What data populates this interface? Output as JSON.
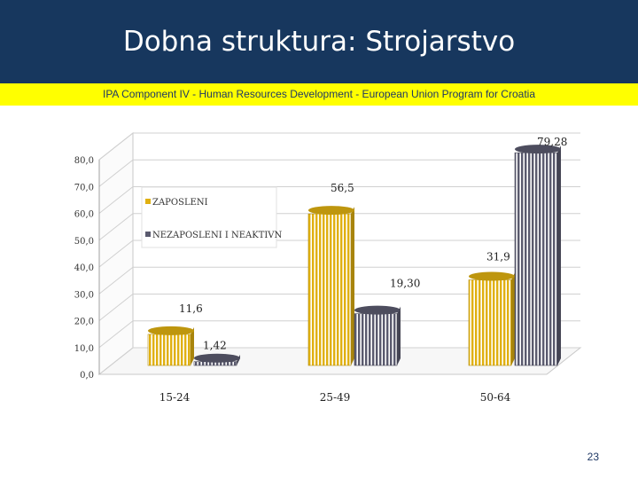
{
  "slide": {
    "title": "Dobna struktura: Strojarstvo",
    "subtitle": "IPA Component IV - Human Resources Development - European Union Program for Croatia",
    "page_number": "23"
  },
  "colors": {
    "header_bg": "#17375e",
    "banner_bg": "#ffff00",
    "series_zaposleni": "#e0b010",
    "series_nezaposleni": "#5a5a6e"
  },
  "chart_data": {
    "type": "bar",
    "title": "",
    "xlabel": "",
    "ylabel": "",
    "categories": [
      "15-24",
      "25-49",
      "50-64"
    ],
    "series": [
      {
        "name": "ZAPOSLENI",
        "values": [
          11.6,
          56.5,
          31.9
        ],
        "labels": [
          "11,6",
          "56,5",
          "31,9"
        ]
      },
      {
        "name": "NEZAPOSLENI I NEAKTIVNI",
        "values": [
          1.42,
          19.3,
          79.28
        ],
        "labels": [
          "1,42",
          "19,30",
          "79,28"
        ]
      }
    ],
    "yticks": [
      "0,0",
      "10,0",
      "20,0",
      "30,0",
      "40,0",
      "50,0",
      "60,0",
      "70,0",
      "80,0"
    ],
    "ylim": [
      0,
      80
    ],
    "grid": true,
    "legend": [
      "ZAPOSLENI",
      "NEZAPOSLENI I NEAKTIVN"
    ],
    "legend_position": "top-left"
  }
}
